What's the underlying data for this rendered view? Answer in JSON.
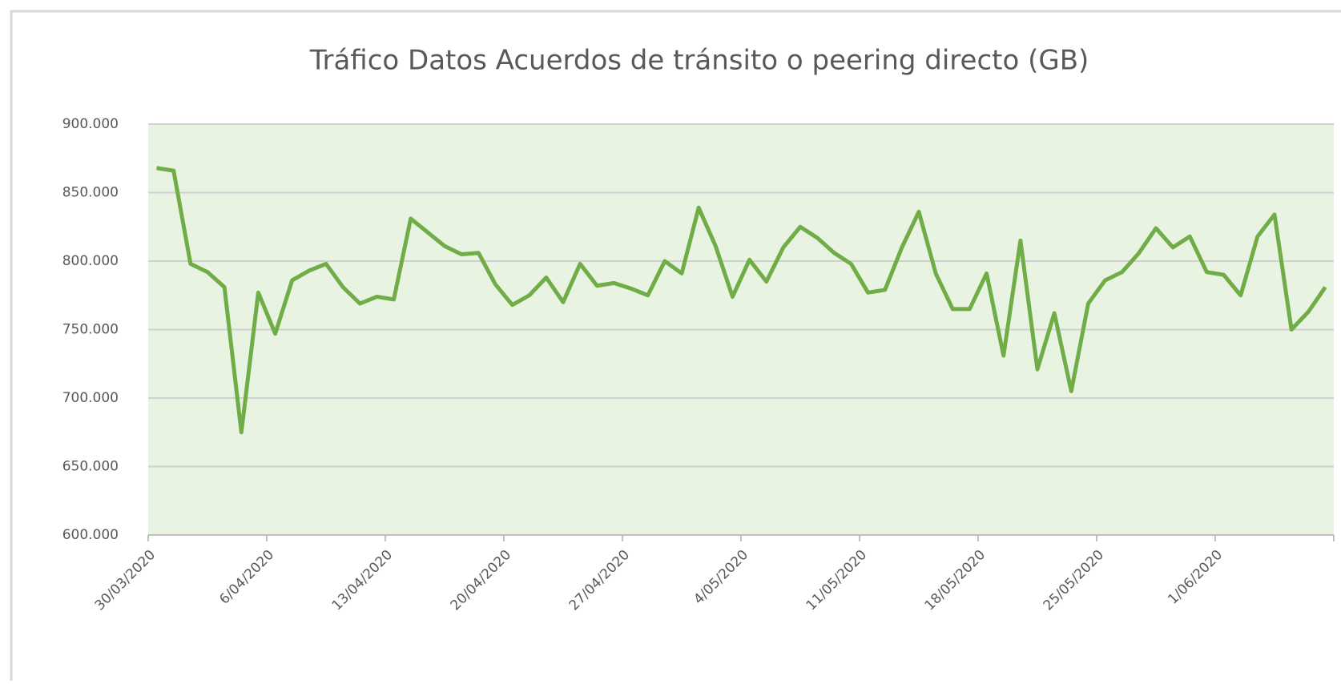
{
  "chart_data": {
    "type": "line",
    "title": "Tráfico Datos  Acuerdos de tránsito o peering directo (GB)",
    "categories": [
      "30/03/2020",
      null,
      null,
      null,
      null,
      null,
      null,
      "6/04/2020",
      null,
      null,
      null,
      null,
      null,
      null,
      "13/04/2020",
      null,
      null,
      null,
      null,
      null,
      null,
      "20/04/2020",
      null,
      null,
      null,
      null,
      null,
      null,
      "27/04/2020",
      null,
      null,
      null,
      null,
      null,
      null,
      "4/05/2020",
      null,
      null,
      null,
      null,
      null,
      null,
      "11/05/2020",
      null,
      null,
      null,
      null,
      null,
      null,
      "18/05/2020",
      null,
      null,
      null,
      null,
      null,
      null,
      "25/05/2020",
      null,
      null,
      null,
      null,
      null,
      null,
      "1/06/2020",
      null,
      null,
      null,
      null,
      null,
      null
    ],
    "series": [
      {
        "name": "Tráfico Datos  Acuerdos de tránsito o peering directo (GB)",
        "color": "#70ad47",
        "values": [
          868000,
          866000,
          798000,
          792000,
          781000,
          675000,
          777000,
          747000,
          786000,
          793000,
          798000,
          781000,
          769000,
          774000,
          772000,
          831000,
          821000,
          811000,
          805000,
          806000,
          783000,
          768000,
          775000,
          788000,
          770000,
          798000,
          782000,
          784000,
          780000,
          775000,
          800000,
          791000,
          839000,
          811000,
          774000,
          801000,
          785000,
          810000,
          825000,
          817000,
          806000,
          798000,
          777000,
          779000,
          810000,
          836000,
          791000,
          765000,
          765000,
          791000,
          731000,
          815000,
          721000,
          762000,
          705000,
          769000,
          786000,
          792000,
          806000,
          824000,
          810000,
          818000,
          792000,
          790000,
          775000,
          818000,
          834000,
          750000,
          763000,
          781000
        ]
      }
    ],
    "ylim": [
      600000,
      900000
    ],
    "yticks": [
      {
        "value": 600000,
        "label": "600.000"
      },
      {
        "value": 650000,
        "label": "650.000"
      },
      {
        "value": 700000,
        "label": "700.000"
      },
      {
        "value": 750000,
        "label": "750.000"
      },
      {
        "value": 800000,
        "label": "800.000"
      },
      {
        "value": 850000,
        "label": "850.000"
      },
      {
        "value": 900000,
        "label": "900.000"
      }
    ],
    "grid": true,
    "plot_background": "#e8f3e2"
  }
}
